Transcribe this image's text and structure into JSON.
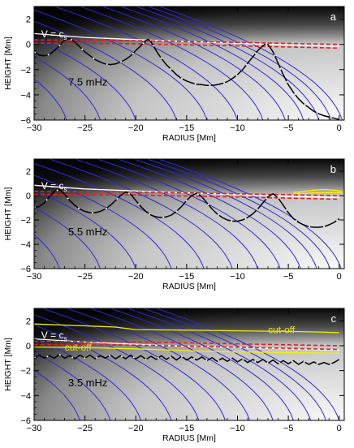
{
  "chart_data": [
    {
      "type": "line",
      "panel_label": "a",
      "frequency_label": "7.5 mHz",
      "xlabel": "RADIUS [Mm]",
      "ylabel": "HEIGHT [Mm]",
      "xlim": [
        -30,
        0.5
      ],
      "ylim": [
        -6,
        3
      ],
      "x_ticks": [
        -30,
        -25,
        -20,
        -15,
        -10,
        -5,
        0
      ],
      "y_ticks": [
        -6,
        -4,
        -2,
        0,
        2
      ],
      "annotations": [
        {
          "text": "V = c",
          "sub": "s",
          "x": -29.3,
          "y": 0.55
        }
      ],
      "field_lines": [
        -26.8,
        -23.5,
        -20.0,
        -16.0,
        -13.0,
        -10.0,
        -7.5,
        -5.3,
        -3.5,
        -2.0,
        -0.8,
        0.3
      ],
      "field_line_slope": -0.18,
      "vcs_curve": {
        "x": [
          -30,
          -25,
          -20,
          -15,
          -10,
          -5,
          0
        ],
        "y": [
          0.85,
          0.55,
          0.38,
          0.22,
          0.08,
          -0.05,
          -0.15
        ]
      },
      "red_dashed_lines": [
        {
          "x": [
            -30,
            -20,
            -10,
            0
          ],
          "y": [
            0.35,
            0.3,
            0.15,
            0.0
          ]
        },
        {
          "x": [
            -30,
            -20,
            -10,
            0
          ],
          "y": [
            0.1,
            0.05,
            -0.12,
            -0.3
          ]
        }
      ],
      "ray_path": {
        "x": [
          -30,
          -29.5,
          -29,
          -28.5,
          -28,
          -27.5,
          -27,
          -26.5,
          -26,
          -25.5,
          -25,
          -24.5,
          -24,
          -23.5,
          -23,
          -22.5,
          -22,
          -21.5,
          -21,
          -20.5,
          -20,
          -19.5,
          -19,
          -18.8,
          -18.5,
          -18,
          -17.5,
          -17,
          -16.5,
          -16,
          -15.5,
          -15,
          -14.5,
          -14,
          -13.5,
          -13,
          -12.5,
          -12,
          -11.5,
          -11,
          -10.5,
          -10,
          -9.5,
          -9,
          -8.5,
          -8,
          -7.5,
          -7.2,
          -7,
          -6.5,
          -6,
          -5.5,
          -5,
          -4.5,
          -4,
          -3.5,
          -3,
          -2.5,
          -2,
          -1.5,
          -1,
          -0.5,
          0
        ],
        "y": [
          -0.6,
          -0.85,
          -0.9,
          -0.8,
          -0.5,
          -0.1,
          0.35,
          0.45,
          0.2,
          -0.2,
          -0.6,
          -0.9,
          -1.2,
          -1.4,
          -1.55,
          -1.6,
          -1.55,
          -1.4,
          -1.2,
          -0.9,
          -0.5,
          -0.1,
          0.3,
          0.4,
          0.2,
          -0.5,
          -1.1,
          -1.6,
          -2.0,
          -2.4,
          -2.7,
          -2.9,
          -3.05,
          -3.15,
          -3.2,
          -3.25,
          -3.25,
          -3.2,
          -3.1,
          -2.95,
          -2.7,
          -2.4,
          -2.0,
          -1.5,
          -1.0,
          -0.5,
          -0.1,
          0.05,
          0.0,
          -0.6,
          -1.5,
          -2.4,
          -3.2,
          -3.8,
          -4.3,
          -4.7,
          -5.0,
          -5.3,
          -5.5,
          -5.65,
          -5.75,
          -5.85,
          -5.95
        ]
      },
      "cutoff_curves": []
    },
    {
      "type": "line",
      "panel_label": "b",
      "frequency_label": "5.5 mHz",
      "xlabel": "RADIUS [Mm]",
      "ylabel": "HEIGHT [Mm]",
      "xlim": [
        -30,
        0.5
      ],
      "ylim": [
        -6,
        3
      ],
      "x_ticks": [
        -30,
        -25,
        -20,
        -15,
        -10,
        -5,
        0
      ],
      "y_ticks": [
        -6,
        -4,
        -2,
        0,
        2
      ],
      "annotations": [
        {
          "text": "V = c",
          "sub": "s",
          "x": -29.3,
          "y": 0.55
        }
      ],
      "field_lines": [
        -27.5,
        -23.5,
        -20.0,
        -16.5,
        -13.3,
        -10.5,
        -8.0,
        -5.8,
        -3.8,
        -2.2,
        -0.9,
        0.2
      ],
      "field_line_slope": -0.18,
      "vcs_curve": {
        "x": [
          -30,
          -25,
          -20,
          -15,
          -10,
          -5,
          0
        ],
        "y": [
          0.85,
          0.55,
          0.38,
          0.22,
          0.08,
          -0.05,
          -0.15
        ]
      },
      "red_dashed_lines": [
        {
          "x": [
            -30,
            -20,
            -10,
            0
          ],
          "y": [
            0.35,
            0.3,
            0.15,
            0.0
          ]
        },
        {
          "x": [
            -30,
            -20,
            -10,
            0
          ],
          "y": [
            0.1,
            0.05,
            -0.12,
            -0.3
          ]
        }
      ],
      "ray_path": {
        "x": [
          -30,
          -29.5,
          -29,
          -28.5,
          -28,
          -27.5,
          -27,
          -26.5,
          -26,
          -25.5,
          -25,
          -24.5,
          -24,
          -23.5,
          -23,
          -22.5,
          -22,
          -21.5,
          -21,
          -20.5,
          -20,
          -19.5,
          -19,
          -18.5,
          -18,
          -17.5,
          -17,
          -16.5,
          -16,
          -15.5,
          -15,
          -14.5,
          -14,
          -13.5,
          -13,
          -12.5,
          -12,
          -11.5,
          -11,
          -10.5,
          -10,
          -9.5,
          -9,
          -8.5,
          -8,
          -7.5,
          -7,
          -6.5,
          -6,
          -5.5,
          -5,
          -4.5,
          -4,
          -3.5,
          -3,
          -2.5,
          -2,
          -1.5,
          -1,
          -0.5,
          0
        ],
        "y": [
          -1.0,
          -0.9,
          -0.6,
          -0.1,
          0.35,
          0.5,
          0.1,
          -0.4,
          -0.8,
          -1.1,
          -1.3,
          -1.4,
          -1.4,
          -1.3,
          -1.1,
          -0.8,
          -0.4,
          0.0,
          0.3,
          0.1,
          -0.4,
          -0.9,
          -1.3,
          -1.6,
          -1.75,
          -1.8,
          -1.75,
          -1.6,
          -1.3,
          -0.9,
          -0.4,
          0.0,
          0.2,
          -0.1,
          -0.6,
          -1.1,
          -1.5,
          -1.8,
          -2.0,
          -2.1,
          -2.1,
          -2.0,
          -1.8,
          -1.5,
          -1.1,
          -0.6,
          -0.1,
          0.15,
          -0.2,
          -0.8,
          -1.4,
          -1.9,
          -2.2,
          -2.4,
          -2.55,
          -2.6,
          -2.6,
          -2.55,
          -2.4,
          -2.2,
          -1.9
        ]
      },
      "cutoff_curves": [
        {
          "x": [
            -4.5,
            -3.5,
            -2.5,
            -1.5,
            -0.5,
            0.3
          ],
          "y": [
            0.25,
            0.35,
            0.45,
            0.5,
            0.45,
            0.35
          ]
        },
        {
          "x": [
            -4.5,
            -3.5,
            -2.5,
            -1.5,
            -0.5,
            0.3
          ],
          "y": [
            0.15,
            0.18,
            0.22,
            0.25,
            0.25,
            0.22
          ]
        }
      ]
    },
    {
      "type": "line",
      "panel_label": "c",
      "frequency_label": "3.5 mHz",
      "xlabel": "RADIUS [Mm]",
      "ylabel": "HEIGHT [Mm]",
      "xlim": [
        -30,
        0.5
      ],
      "ylim": [
        -6,
        3
      ],
      "x_ticks": [
        -30,
        -25,
        -20,
        -15,
        -10,
        -5,
        0
      ],
      "y_ticks": [
        -6,
        -4,
        -2,
        0,
        2
      ],
      "annotations": [
        {
          "text": "V = c",
          "sub": "s",
          "x": -29.3,
          "y": 0.6
        },
        {
          "text": "cut-off",
          "sub": "",
          "x": -7.0,
          "y": 1.0,
          "color": "#e8e800"
        },
        {
          "text": "cut-off",
          "sub": "",
          "x": -27.0,
          "y": -0.4,
          "color": "#e8e800"
        }
      ],
      "field_lines": [
        -25.5,
        -22.5,
        -19.5,
        -16.5,
        -13.8,
        -11.2,
        -8.8,
        -6.5,
        -4.5,
        -2.8,
        -1.3,
        0.0
      ],
      "field_line_slope": -0.18,
      "vcs_curve": {
        "x": [
          -30,
          -25,
          -20,
          -15,
          -10,
          -5,
          0
        ],
        "y": [
          0.55,
          0.3,
          0.12,
          -0.05,
          -0.15,
          -0.25,
          -0.35
        ]
      },
      "red_dashed_lines": [
        {
          "x": [
            -30,
            -20,
            -10,
            0
          ],
          "y": [
            0.35,
            0.3,
            0.15,
            0.0
          ]
        },
        {
          "x": [
            -30,
            -20,
            -10,
            0
          ],
          "y": [
            0.1,
            0.05,
            -0.12,
            -0.3
          ]
        }
      ],
      "ray_path": {
        "x": [
          -30,
          -29.5,
          -29,
          -28.5,
          -28,
          -27.5,
          -27,
          -26.5,
          -26,
          -25.5,
          -25,
          -24.5,
          -24,
          -23.5,
          -23,
          -22.5,
          -22,
          -21.5,
          -21,
          -20.5,
          -20,
          -19.5,
          -19,
          -18.5,
          -18,
          -17.5,
          -17,
          -16.5,
          -16,
          -15.5,
          -15,
          -14.5,
          -14,
          -13.5,
          -13,
          -12.5,
          -12,
          -11.5,
          -11,
          -10.5,
          -10,
          -9.5,
          -9,
          -8.5,
          -8,
          -7.5,
          -7,
          -6.5,
          -6,
          -5.5,
          -5,
          -4.5,
          -4,
          -3.5,
          -3,
          -2.5,
          -2,
          -1.5,
          -1,
          -0.5,
          0
        ],
        "y": [
          -1.0,
          -0.75,
          -1.0,
          -0.8,
          -1.0,
          -0.7,
          -1.0,
          -0.8,
          -1.05,
          -0.75,
          -1.0,
          -0.75,
          -1.05,
          -0.8,
          -1.0,
          -0.75,
          -1.05,
          -0.8,
          -1.05,
          -0.75,
          -1.05,
          -0.8,
          -1.1,
          -0.85,
          -1.1,
          -0.8,
          -1.1,
          -0.85,
          -1.15,
          -0.85,
          -1.15,
          -0.9,
          -1.15,
          -0.9,
          -1.2,
          -0.95,
          -1.25,
          -1.0,
          -1.25,
          -1.0,
          -1.3,
          -1.05,
          -1.35,
          -1.1,
          -1.35,
          -1.1,
          -1.4,
          -1.15,
          -1.45,
          -1.2,
          -1.45,
          -1.2,
          -1.5,
          -1.25,
          -1.5,
          -1.3,
          -1.5,
          -1.35,
          -1.5,
          -1.35,
          -1.1
        ]
      },
      "cutoff_curves": [
        {
          "x": [
            -30,
            -25,
            -22,
            -20,
            -15,
            -10,
            -5,
            -2,
            0
          ],
          "y": [
            1.75,
            1.6,
            1.5,
            1.3,
            1.25,
            1.2,
            1.15,
            1.1,
            1.05
          ]
        },
        {
          "x": [
            -30,
            -25,
            -20,
            -15,
            -10,
            -5,
            0
          ],
          "y": [
            -0.1,
            -0.15,
            -0.25,
            -0.4,
            -0.5,
            -0.55,
            -0.6
          ]
        }
      ]
    }
  ]
}
